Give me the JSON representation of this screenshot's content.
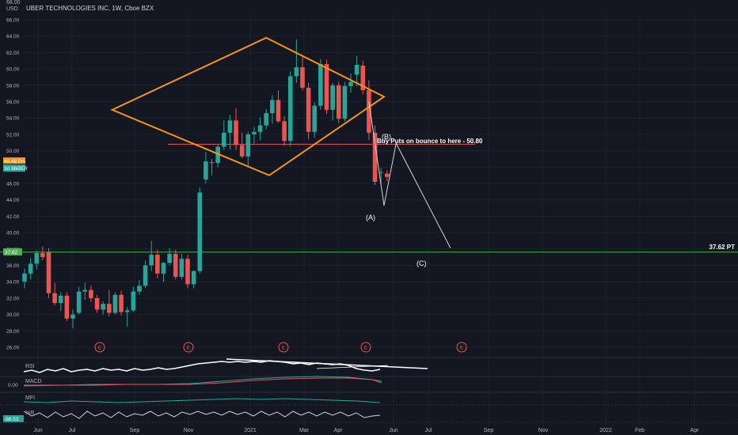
{
  "header": {
    "symbol_title": "UBER TECHNOLOGIES INC, 1W, Cboe BZX",
    "currency": "USD",
    "top_value": "68.00"
  },
  "price_tags": [
    {
      "text": "48.48",
      "sub": "Prv",
      "color": "#f7931a"
    },
    {
      "text": "3d 8h",
      "sub": "UBER",
      "color": "#26a69a"
    },
    {
      "text": "37.62",
      "color": "#4caf50"
    }
  ],
  "annotations": {
    "buy_puts": "Buy Puts on bounce to here - 50.80",
    "target": "37.62 PT",
    "wave_a": "(A)",
    "wave_b": "(B)",
    "wave_c": "(C)",
    "earnings_marker": "E"
  },
  "indicators": {
    "rsi": "RSI",
    "macd": "MACD",
    "macd_zero": "0.00",
    "mfi": "MFI",
    "r": "%R",
    "r_tag": "-98.53"
  },
  "colors": {
    "background": "#131722",
    "up": "#26a69a",
    "down": "#ef5350",
    "diamond": "#f7931a",
    "support": "#ef5350",
    "target": "#4caf50",
    "grid": "#1e222d"
  },
  "chart_data": {
    "type": "candlestick",
    "title": "UBER TECHNOLOGIES INC, 1W, Cboe BZX",
    "ylabel": "USD",
    "ylim": [
      26,
      68
    ],
    "y_ticks": [
      26,
      28,
      30,
      32,
      34,
      36,
      38,
      40,
      42,
      44,
      46,
      48,
      50,
      52,
      54,
      56,
      58,
      60,
      62,
      64,
      66
    ],
    "x_ticks": [
      "Jun",
      "Jul",
      "Sep",
      "Nov",
      "2021",
      "Mar",
      "Apr",
      "Jun",
      "Jul",
      "Sep",
      "Nov",
      "2022",
      "Feb",
      "Apr"
    ],
    "grid": true,
    "candles": [
      {
        "o": 34.0,
        "h": 35.6,
        "l": 33.2,
        "c": 35.0
      },
      {
        "o": 35.0,
        "h": 36.9,
        "l": 34.3,
        "c": 36.2
      },
      {
        "o": 36.2,
        "h": 37.8,
        "l": 35.5,
        "c": 37.5
      },
      {
        "o": 37.5,
        "h": 38.3,
        "l": 36.6,
        "c": 37.0
      },
      {
        "o": 37.6,
        "h": 38.1,
        "l": 32.0,
        "c": 32.6
      },
      {
        "o": 32.6,
        "h": 33.9,
        "l": 31.1,
        "c": 31.4
      },
      {
        "o": 31.4,
        "h": 32.7,
        "l": 30.4,
        "c": 32.3
      },
      {
        "o": 32.3,
        "h": 32.7,
        "l": 29.2,
        "c": 29.5
      },
      {
        "o": 29.5,
        "h": 30.6,
        "l": 28.3,
        "c": 30.0
      },
      {
        "o": 30.2,
        "h": 33.4,
        "l": 30.0,
        "c": 32.8
      },
      {
        "o": 32.8,
        "h": 33.9,
        "l": 31.8,
        "c": 33.0
      },
      {
        "o": 33.0,
        "h": 33.5,
        "l": 31.5,
        "c": 32.0
      },
      {
        "o": 32.0,
        "h": 32.4,
        "l": 30.2,
        "c": 30.6
      },
      {
        "o": 30.6,
        "h": 31.6,
        "l": 30.0,
        "c": 31.3
      },
      {
        "o": 31.3,
        "h": 33.0,
        "l": 29.8,
        "c": 30.2
      },
      {
        "o": 30.2,
        "h": 32.7,
        "l": 30.0,
        "c": 32.4
      },
      {
        "o": 32.4,
        "h": 32.9,
        "l": 29.9,
        "c": 30.3
      },
      {
        "o": 30.3,
        "h": 30.9,
        "l": 28.5,
        "c": 30.5
      },
      {
        "o": 30.5,
        "h": 33.4,
        "l": 30.3,
        "c": 32.8
      },
      {
        "o": 32.8,
        "h": 34.2,
        "l": 32.4,
        "c": 33.5
      },
      {
        "o": 33.5,
        "h": 36.6,
        "l": 33.2,
        "c": 36.0
      },
      {
        "o": 36.0,
        "h": 39.0,
        "l": 35.3,
        "c": 37.3
      },
      {
        "o": 37.3,
        "h": 37.9,
        "l": 34.4,
        "c": 35.0
      },
      {
        "o": 35.0,
        "h": 36.4,
        "l": 34.0,
        "c": 36.3
      },
      {
        "o": 36.3,
        "h": 38.1,
        "l": 36.0,
        "c": 37.4
      },
      {
        "o": 37.4,
        "h": 37.9,
        "l": 34.3,
        "c": 34.6
      },
      {
        "o": 34.6,
        "h": 37.4,
        "l": 34.3,
        "c": 36.8
      },
      {
        "o": 36.8,
        "h": 37.3,
        "l": 33.2,
        "c": 33.7
      },
      {
        "o": 33.7,
        "h": 35.4,
        "l": 33.2,
        "c": 35.3
      },
      {
        "o": 35.3,
        "h": 45.5,
        "l": 35.0,
        "c": 44.9
      },
      {
        "o": 46.5,
        "h": 49.8,
        "l": 46.0,
        "c": 48.7
      },
      {
        "o": 48.6,
        "h": 49.0,
        "l": 47.0,
        "c": 48.5
      },
      {
        "o": 48.5,
        "h": 50.8,
        "l": 48.0,
        "c": 50.5
      },
      {
        "o": 50.5,
        "h": 53.7,
        "l": 50.1,
        "c": 52.2
      },
      {
        "o": 52.2,
        "h": 54.4,
        "l": 50.2,
        "c": 53.7
      },
      {
        "o": 53.7,
        "h": 55.2,
        "l": 50.1,
        "c": 50.7
      },
      {
        "o": 50.7,
        "h": 52.2,
        "l": 49.1,
        "c": 49.3
      },
      {
        "o": 49.3,
        "h": 52.3,
        "l": 48.2,
        "c": 52.0
      },
      {
        "o": 52.0,
        "h": 52.9,
        "l": 50.9,
        "c": 52.3
      },
      {
        "o": 52.3,
        "h": 54.1,
        "l": 51.3,
        "c": 53.1
      },
      {
        "o": 53.1,
        "h": 55.1,
        "l": 52.6,
        "c": 54.6
      },
      {
        "o": 54.6,
        "h": 56.8,
        "l": 53.3,
        "c": 56.2
      },
      {
        "o": 56.2,
        "h": 57.4,
        "l": 53.4,
        "c": 53.6
      },
      {
        "o": 53.6,
        "h": 54.2,
        "l": 50.6,
        "c": 51.2
      },
      {
        "o": 51.2,
        "h": 59.7,
        "l": 50.5,
        "c": 59.1
      },
      {
        "o": 59.1,
        "h": 63.6,
        "l": 58.3,
        "c": 60.2
      },
      {
        "o": 60.2,
        "h": 61.6,
        "l": 57.4,
        "c": 57.7
      },
      {
        "o": 57.7,
        "h": 58.3,
        "l": 51.4,
        "c": 52.3
      },
      {
        "o": 52.3,
        "h": 55.9,
        "l": 51.6,
        "c": 55.5
      },
      {
        "o": 55.5,
        "h": 61.2,
        "l": 55.0,
        "c": 60.6
      },
      {
        "o": 60.6,
        "h": 61.1,
        "l": 54.5,
        "c": 55.0
      },
      {
        "o": 55.0,
        "h": 58.3,
        "l": 53.7,
        "c": 58.0
      },
      {
        "o": 58.0,
        "h": 58.4,
        "l": 53.4,
        "c": 53.9
      },
      {
        "o": 53.9,
        "h": 58.4,
        "l": 53.6,
        "c": 57.9
      },
      {
        "o": 57.9,
        "h": 59.4,
        "l": 57.1,
        "c": 58.4
      },
      {
        "o": 59.3,
        "h": 61.6,
        "l": 57.9,
        "c": 60.5
      },
      {
        "o": 60.4,
        "h": 61.0,
        "l": 56.9,
        "c": 57.4
      },
      {
        "o": 57.4,
        "h": 58.6,
        "l": 51.3,
        "c": 52.2
      },
      {
        "o": 52.2,
        "h": 53.1,
        "l": 45.8,
        "c": 46.2
      },
      {
        "o": 47.3,
        "h": 47.9,
        "l": 45.9,
        "c": 47.4
      },
      {
        "o": 47.2,
        "h": 47.6,
        "l": 46.3,
        "c": 46.8
      }
    ],
    "diamond": [
      {
        "bar": 14.5,
        "y": 55.0
      },
      {
        "bar": 40.0,
        "y": 63.8
      },
      {
        "bar": 59.5,
        "y": 56.6
      },
      {
        "bar": 40.5,
        "y": 47.0
      }
    ],
    "support_level": 50.8,
    "target_level": 37.62,
    "wave_path": [
      {
        "bar": 57.0,
        "y": 56.0
      },
      {
        "bar": 59.5,
        "y": 43.3
      },
      {
        "bar": 61.5,
        "y": 50.9
      },
      {
        "bar": 70.5,
        "y": 38.1
      }
    ],
    "earnings_bars": [
      7.0,
      16.0,
      25.0,
      34.0,
      43.0
    ],
    "rsi_divergence": [
      {
        "from_bar": 42,
        "from_y": 0,
        "to_bar": 66,
        "to_y": 0
      }
    ]
  }
}
